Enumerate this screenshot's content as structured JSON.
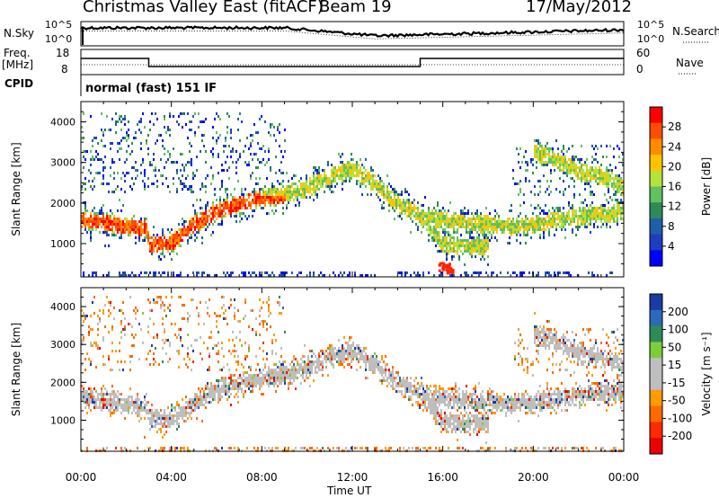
{
  "header": {
    "title": "Christmas Valley East (fitACF)",
    "beam": "Beam 19",
    "date": "17/May/2012"
  },
  "panels": {
    "nsky_label": "N.Sky",
    "nsky_ticks": [
      "10^5",
      "10^0"
    ],
    "nsearch_label": "N.Search",
    "nsearch_ticks": [
      "10^5",
      "10^0"
    ],
    "freq_label_1": "Freq.",
    "freq_label_2": "[MHz]",
    "freq_ticks": [
      "18",
      "8"
    ],
    "nave_label": "Nave",
    "nave_ticks": [
      "60",
      "0"
    ],
    "cpid_label": "CPID",
    "cpid_text": "normal (fast) 151 IF"
  },
  "colorbars": {
    "power": {
      "title": "Power [dB]",
      "ticks": [
        "28",
        "24",
        "20",
        "16",
        "12",
        "8",
        "4"
      ],
      "colors": [
        "#ff0000",
        "#ff4d00",
        "#ff8c00",
        "#ffc400",
        "#b5e23b",
        "#5fc15f",
        "#2e8b57",
        "#1f5fa8",
        "#1e3dbf",
        "#0000ff"
      ]
    },
    "velocity": {
      "title": "Velocity [m s⁻¹]",
      "ticks": [
        "200",
        "100",
        "50",
        "15",
        "-15",
        "-50",
        "-100",
        "-200"
      ],
      "colors": [
        "#1a3aa8",
        "#2a6ab8",
        "#2e8b57",
        "#7fcc3a",
        "#bebebe",
        "#bebebe",
        "#ff9a00",
        "#ff6a00",
        "#ff2a00",
        "#ee0000"
      ]
    }
  },
  "axes": {
    "ylabel": "Slant Range [km]",
    "yticks": [
      "4000",
      "3000",
      "2000",
      "1000"
    ],
    "xlabel": "Time UT",
    "xticks": [
      "00:00",
      "04:00",
      "08:00",
      "12:00",
      "16:00",
      "20:00",
      "00:00"
    ]
  },
  "chart_data": [
    {
      "type": "heatmap",
      "name": "power",
      "x_range_hours": [
        0,
        24
      ],
      "y_range_km": [
        180,
        4500
      ],
      "value_range_db": [
        0,
        32
      ],
      "echo_bands": [
        {
          "hours": [
            0,
            1,
            2,
            2.9,
            3,
            4,
            5,
            6,
            7,
            8,
            9
          ],
          "km": [
            1600,
            1550,
            1450,
            1400,
            1000,
            1050,
            1500,
            1850,
            2000,
            2150,
            2200
          ],
          "db": 30
        },
        {
          "hours": [
            8,
            9,
            10,
            11,
            12,
            13,
            14,
            15,
            15.5,
            16,
            17,
            18
          ],
          "km": [
            2200,
            2250,
            2400,
            2700,
            2850,
            2500,
            2000,
            1700,
            1400,
            1000,
            950,
            950
          ],
          "db": 18
        },
        {
          "hours": [
            15,
            16,
            17,
            18,
            19,
            20,
            21,
            22,
            23,
            24
          ],
          "km": [
            1700,
            1600,
            1550,
            1500,
            1450,
            1500,
            1600,
            1700,
            1750,
            1800
          ],
          "db": 8
        },
        {
          "hours": [
            20,
            21,
            22,
            23,
            24
          ],
          "km": [
            3300,
            3100,
            2800,
            2700,
            2400
          ],
          "db": 18
        }
      ]
    },
    {
      "type": "heatmap",
      "name": "velocity",
      "x_range_hours": [
        0,
        24
      ],
      "y_range_km": [
        180,
        4500
      ],
      "value_range_mps": [
        -200,
        200
      ]
    },
    {
      "type": "line",
      "name": "frequency",
      "x": [
        0,
        3,
        3,
        15,
        15,
        24
      ],
      "y": [
        15,
        15,
        10.5,
        10.5,
        15,
        15
      ]
    }
  ]
}
